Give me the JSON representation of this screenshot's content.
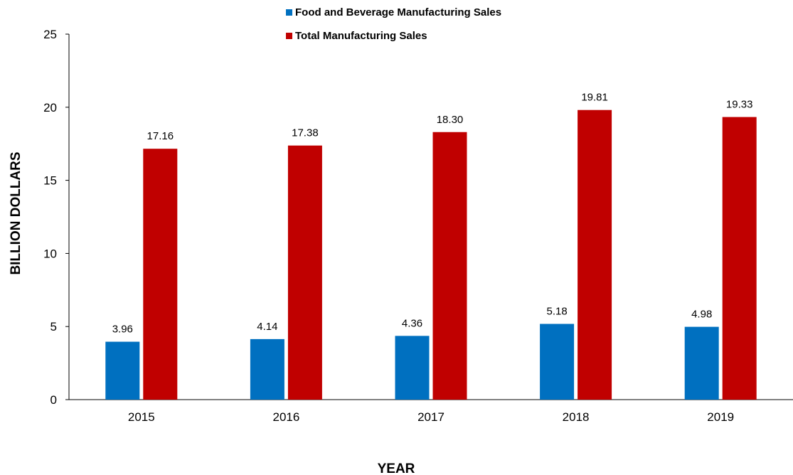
{
  "chart_data": {
    "type": "bar",
    "categories": [
      "2015",
      "2016",
      "2017",
      "2018",
      "2019"
    ],
    "series": [
      {
        "name": "Food and Beverage Manufacturing Sales",
        "values": [
          3.96,
          4.14,
          4.36,
          5.18,
          4.98
        ],
        "labels": [
          "3.96",
          "4.14",
          "4.36",
          "5.18",
          "4.98"
        ],
        "color": "#0070C0"
      },
      {
        "name": "Total Manufacturing Sales",
        "values": [
          17.16,
          17.38,
          18.3,
          19.81,
          19.33
        ],
        "labels": [
          "17.16",
          "17.38",
          "18.30",
          "19.81",
          "19.33"
        ],
        "color": "#C00000"
      }
    ],
    "title": "",
    "xlabel": "YEAR",
    "ylabel": "BILLION DOLLARS",
    "ylim": [
      0,
      25
    ],
    "yticks": [
      "0",
      "5",
      "10",
      "15",
      "20",
      "25"
    ],
    "grid": false,
    "legend_position": "top-center"
  }
}
